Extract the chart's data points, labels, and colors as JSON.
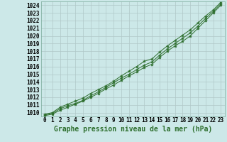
{
  "background_color": "#cce8e8",
  "grid_color": "#b0c8c8",
  "line_color": "#2d6e2d",
  "title": "Graphe pression niveau de la mer (hPa)",
  "x_labels": [
    "0",
    "1",
    "2",
    "3",
    "4",
    "5",
    "6",
    "7",
    "8",
    "9",
    "10",
    "11",
    "12",
    "13",
    "14",
    "15",
    "16",
    "17",
    "18",
    "19",
    "20",
    "21",
    "22",
    "23"
  ],
  "xlim": [
    -0.5,
    23.5
  ],
  "ylim": [
    1009.5,
    1024.5
  ],
  "yticks": [
    1010,
    1011,
    1012,
    1013,
    1014,
    1015,
    1016,
    1017,
    1018,
    1019,
    1020,
    1021,
    1022,
    1023,
    1024
  ],
  "series": [
    [
      1009.6,
      1009.8,
      1010.3,
      1010.7,
      1011.1,
      1011.5,
      1012.0,
      1012.5,
      1013.1,
      1013.6,
      1014.2,
      1014.8,
      1015.3,
      1015.9,
      1016.3,
      1017.2,
      1018.0,
      1018.7,
      1019.3,
      1020.0,
      1021.0,
      1022.0,
      1023.0,
      1024.0
    ],
    [
      1009.7,
      1009.9,
      1010.5,
      1010.9,
      1011.2,
      1011.6,
      1012.2,
      1012.7,
      1013.3,
      1013.9,
      1014.5,
      1015.0,
      1015.6,
      1016.2,
      1016.6,
      1017.5,
      1018.3,
      1019.0,
      1019.7,
      1020.4,
      1021.3,
      1022.3,
      1023.2,
      1024.2
    ],
    [
      1009.8,
      1010.0,
      1010.7,
      1011.1,
      1011.5,
      1011.9,
      1012.5,
      1013.0,
      1013.5,
      1014.1,
      1014.8,
      1015.4,
      1016.0,
      1016.7,
      1017.0,
      1017.9,
      1018.7,
      1019.4,
      1020.1,
      1020.8,
      1021.7,
      1022.6,
      1023.4,
      1024.4
    ]
  ],
  "title_fontsize": 7,
  "tick_fontsize": 5.5
}
